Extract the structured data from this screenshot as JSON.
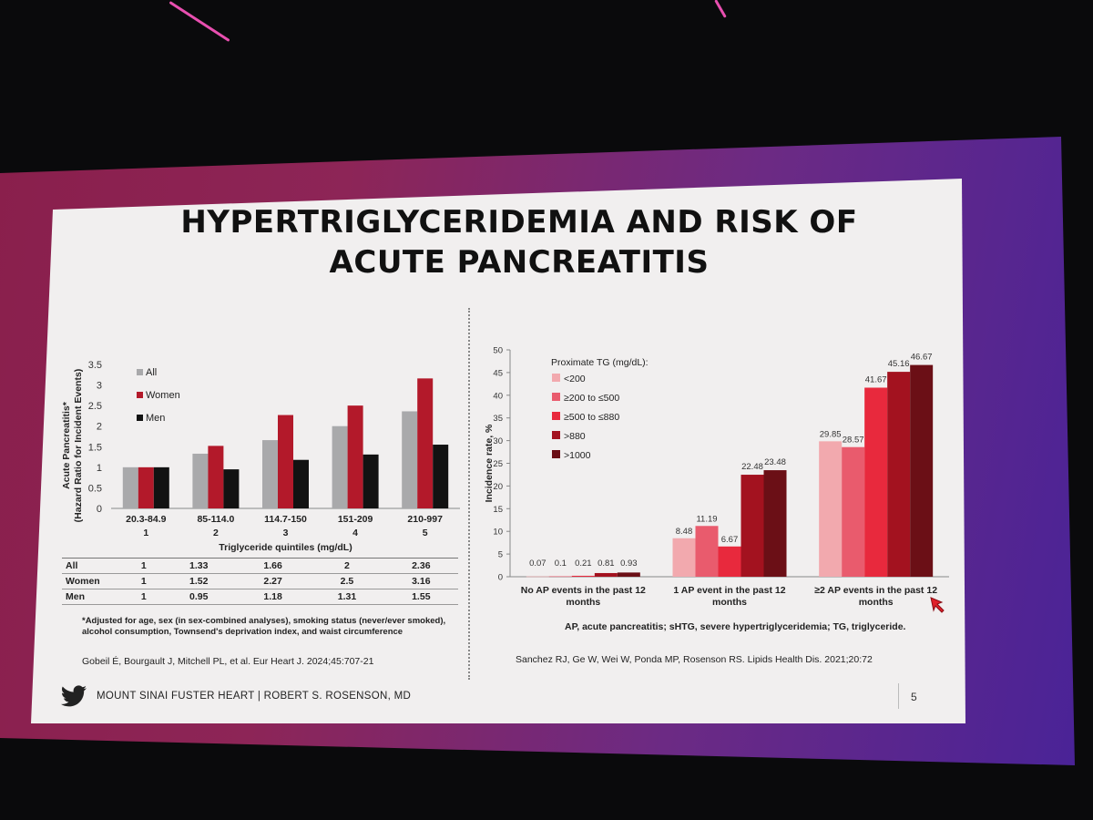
{
  "slide": {
    "title_line1": "HYPERTRIGLYCERIDEMIA AND RISK OF",
    "title_line2": "ACUTE PANCREATITIS",
    "footer": "MOUNT SINAI FUSTER HEART | ROBERT S. ROSENSON, MD",
    "page_number": "5",
    "left_footnote_line1": "*Adjusted for age, sex (in sex-combined analyses), smoking status (never/ever smoked),",
    "left_footnote_line2": "alcohol consumption, Townsend's deprivation index, and waist circumference",
    "left_citation": "Gobeil É, Bourgault J, Mitchell PL, et al. Eur Heart J. 2024;45:707-21",
    "right_footnote": "AP, acute pancreatitis; sHTG, severe hypertriglyceridemia; TG, triglyceride.",
    "right_citation": "Sanchez RJ, Ge W, Wei W, Ponda MP, Rosenson RS. Lipids Health Dis. 2021;20:72"
  },
  "colors": {
    "all": "#a9a9ab",
    "women": "#b3192a",
    "men": "#121212",
    "tg_lt200": "#f2a9ae",
    "tg_200_500": "#e95b6d",
    "tg_500_880": "#e8293d",
    "tg_gt880": "#a3121f",
    "tg_gt1000": "#6b0f16"
  },
  "chart_data": [
    {
      "type": "bar",
      "ylabel_line1": "Acute Pancreatitis*",
      "ylabel_line2": "(Hazard Ratio for Incident Events)",
      "xlabel": "Triglyceride quintiles (mg/dL)",
      "ylim": [
        0,
        3.5
      ],
      "yticks": [
        "0",
        "0.5",
        "1",
        "1.5",
        "2",
        "2.5",
        "3",
        "3.5"
      ],
      "categories": [
        "20.3-84.9",
        "85-114.0",
        "114.7-150",
        "151-209",
        "210-997"
      ],
      "quintile_numbers": [
        "1",
        "2",
        "3",
        "4",
        "5"
      ],
      "legend_position": "top-left",
      "series": [
        {
          "name": "All",
          "values": [
            1,
            1.33,
            1.66,
            2,
            2.36
          ]
        },
        {
          "name": "Women",
          "values": [
            1,
            1.52,
            2.27,
            2.5,
            3.16
          ]
        },
        {
          "name": "Men",
          "values": [
            1,
            0.95,
            1.18,
            1.31,
            1.55
          ]
        }
      ],
      "table": {
        "rows": [
          {
            "label": "All",
            "values": [
              "1",
              "1.33",
              "1.66",
              "2",
              "2.36"
            ]
          },
          {
            "label": "Women",
            "values": [
              "1",
              "1.52",
              "2.27",
              "2.5",
              "3.16"
            ]
          },
          {
            "label": "Men",
            "values": [
              "1",
              "0.95",
              "1.18",
              "1.31",
              "1.55"
            ]
          }
        ]
      }
    },
    {
      "type": "bar",
      "ylabel": "Incidence rate, %",
      "ylim": [
        0,
        50
      ],
      "yticks": [
        "0",
        "5",
        "10",
        "15",
        "20",
        "25",
        "30",
        "35",
        "40",
        "45",
        "50"
      ],
      "legend_title": "Proximate TG (mg/dL):",
      "legend_position": "top-left",
      "categories": [
        [
          "No AP events in the past 12",
          "months"
        ],
        [
          "1 AP event in the past 12",
          "months"
        ],
        [
          "≥2 AP events in the past 12",
          "months"
        ]
      ],
      "series": [
        {
          "name": "<200",
          "values": [
            0.07,
            8.48,
            29.85
          ],
          "labels": [
            "0.07",
            "8.48",
            "29.85"
          ]
        },
        {
          "name": "≥200 to ≤500",
          "values": [
            0.1,
            11.19,
            28.57
          ],
          "labels": [
            "0.1",
            "11.19",
            "28.57"
          ]
        },
        {
          "name": "≥500 to ≤880",
          "values": [
            0.21,
            6.67,
            41.67
          ],
          "labels": [
            "0.21",
            "6.67",
            "41.67"
          ]
        },
        {
          "name": ">880",
          "values": [
            0.81,
            22.48,
            45.16
          ],
          "labels": [
            "0.81",
            "22.48",
            "45.16"
          ]
        },
        {
          "name": ">1000",
          "values": [
            0.93,
            23.48,
            46.67
          ],
          "labels": [
            "0.93",
            "23.48",
            "46.67"
          ]
        }
      ]
    }
  ]
}
